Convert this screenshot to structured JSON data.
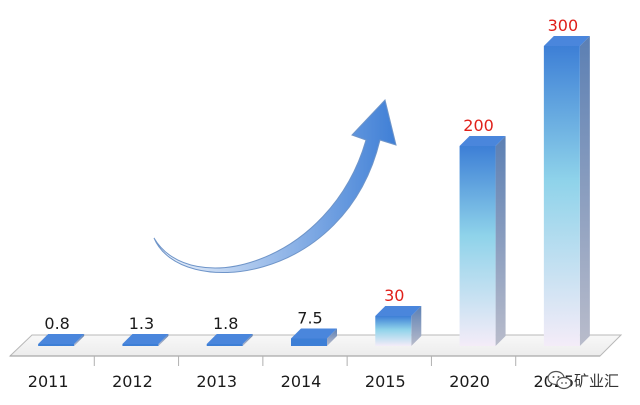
{
  "chart_data": {
    "type": "bar",
    "categories": [
      "2011",
      "2012",
      "2013",
      "2014",
      "2015",
      "2020",
      "2025"
    ],
    "values": [
      0.8,
      1.3,
      1.8,
      7.5,
      30,
      200,
      300
    ],
    "data_labels": [
      "0.8",
      "1.3",
      "1.8",
      "7.5",
      "30",
      "200",
      "300"
    ],
    "title": "",
    "xlabel": "",
    "ylabel": "",
    "ylim": [
      0,
      300
    ],
    "grid": false,
    "legend": "none",
    "annotations": [
      "curved-arrow-upward-trend"
    ]
  },
  "colors": {
    "bar_top": "#3d7fd6",
    "bar_mid": "#8fd3ea",
    "bar_bottom": "#f4ecf8",
    "bar_side": "#7f8a99",
    "label_small": "#1b1b1b",
    "label_large": "#e0201a",
    "arrow_light": "#f2f6fc",
    "arrow_dark": "#3f7fd6"
  },
  "watermark": {
    "icon": "wechat-icon",
    "text": "矿业汇"
  }
}
